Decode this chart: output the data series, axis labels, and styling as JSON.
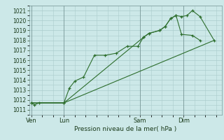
{
  "background_color": "#cce8e8",
  "grid_color": "#aacccc",
  "line_color": "#2d6e2d",
  "marker_color": "#2d6e2d",
  "title": "Pression niveau de la mer( hPa )",
  "xlabel_day_labels": [
    "Ven",
    "Lun",
    "Sam",
    "Dim"
  ],
  "xlabel_day_positions": [
    0,
    3,
    10,
    14
  ],
  "ylim": [
    1010.5,
    1021.5
  ],
  "yticks": [
    1011,
    1012,
    1013,
    1014,
    1015,
    1016,
    1017,
    1018,
    1019,
    1020,
    1021
  ],
  "series1_x": [
    0,
    0.3,
    0.7,
    3.0,
    3.5,
    4.0,
    4.8,
    5.8,
    6.8,
    7.8,
    8.8,
    9.8,
    10.3,
    10.8,
    11.8,
    12.3,
    12.8,
    13.3,
    13.8,
    14.8,
    15.5
  ],
  "series1_y": [
    1011.7,
    1011.5,
    1011.7,
    1011.7,
    1013.2,
    1013.9,
    1014.3,
    1016.5,
    1016.5,
    1016.7,
    1017.4,
    1017.4,
    1018.3,
    1018.7,
    1019.0,
    1019.4,
    1020.2,
    1020.5,
    1018.6,
    1018.5,
    1018.0
  ],
  "series2_x": [
    0,
    3.0,
    10.3,
    10.8,
    11.8,
    12.3,
    12.8,
    13.3,
    13.8,
    14.3,
    14.8,
    15.5,
    16.8
  ],
  "series2_y": [
    1011.7,
    1011.7,
    1018.3,
    1018.7,
    1019.0,
    1019.4,
    1020.2,
    1020.5,
    1020.4,
    1020.5,
    1021.0,
    1020.4,
    1018.0
  ],
  "series3_x": [
    0,
    3.0,
    16.8
  ],
  "series3_y": [
    1011.7,
    1011.7,
    1018.0
  ],
  "vline_positions": [
    0,
    3.0,
    10.0,
    14.0
  ],
  "xlim": [
    -0.2,
    17.5
  ]
}
